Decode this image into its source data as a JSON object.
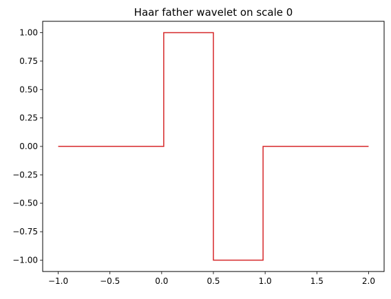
{
  "chart_data": {
    "type": "line",
    "title": "Haar father wavelet on scale 0",
    "xlabel": "",
    "ylabel": "",
    "xlim": [
      -1.15,
      2.15
    ],
    "ylim": [
      -1.1,
      1.1
    ],
    "grid": false,
    "legend": "none",
    "x_ticks": [
      -1.0,
      -0.5,
      0.0,
      0.5,
      1.0,
      1.5,
      2.0
    ],
    "x_tick_labels": [
      "−1.0",
      "−0.5",
      "0.0",
      "0.5",
      "1.0",
      "1.5",
      "2.0"
    ],
    "y_ticks": [
      1.0,
      0.75,
      0.5,
      0.25,
      0.0,
      -0.25,
      -0.5,
      -0.75,
      -1.0
    ],
    "y_tick_labels": [
      "1.00",
      "0.75",
      "0.50",
      "0.25",
      "0.00",
      "−0.25",
      "−0.50",
      "−0.75",
      "−1.00"
    ],
    "series": [
      {
        "color": "#d62728",
        "x": [
          -1.0,
          0.02,
          0.02,
          0.5,
          0.5,
          0.98,
          0.98,
          2.0
        ],
        "y": [
          0.0,
          0.0,
          1.0,
          1.0,
          -1.0,
          -1.0,
          0.0,
          0.0
        ]
      }
    ]
  }
}
